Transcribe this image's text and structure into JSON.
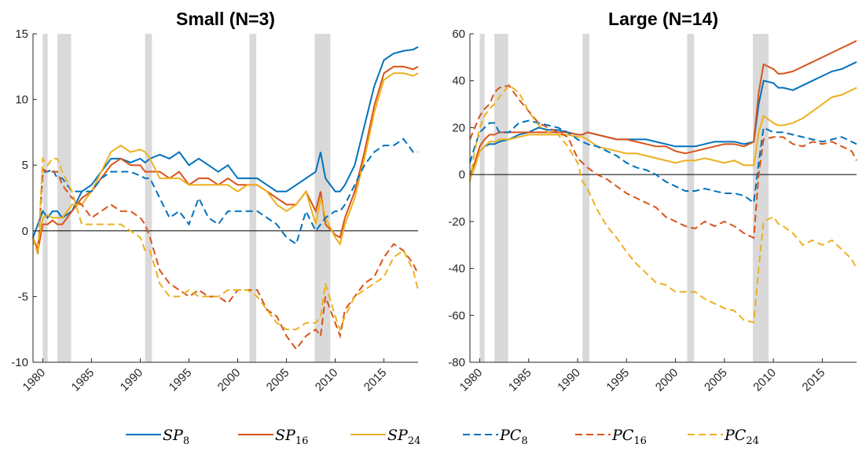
{
  "chart_data": [
    {
      "type": "line",
      "title": "Small (N=3)",
      "xlim": [
        1979,
        2018.5
      ],
      "xticks": [
        1980,
        1985,
        1990,
        1995,
        2000,
        2005,
        2010,
        2015
      ],
      "ylim": [
        -10,
        15
      ],
      "yticks": [
        -10,
        -5,
        0,
        5,
        10,
        15
      ],
      "recessions": [
        [
          1980.0,
          1980.5
        ],
        [
          1981.5,
          1982.9
        ],
        [
          1990.5,
          1991.2
        ],
        [
          2001.2,
          2001.9
        ],
        [
          2007.9,
          2009.5
        ]
      ],
      "recession_color": "#d9d9d9",
      "x": [
        1979,
        1979.5,
        1980,
        1980.5,
        1981,
        1981.5,
        1982,
        1983,
        1984,
        1985,
        1986,
        1987,
        1988,
        1989,
        1990,
        1990.5,
        1991,
        1992,
        1993,
        1994,
        1995,
        1996,
        1997,
        1998,
        1999,
        2000,
        2001,
        2002,
        2003,
        2004,
        2005,
        2006,
        2007,
        2008,
        2008.5,
        2009,
        2010,
        2010.5,
        2011,
        2012,
        2013,
        2014,
        2015,
        2016,
        2017,
        2018,
        2018.5
      ],
      "series": [
        {
          "name": "SP",
          "subscript": "8",
          "color": "#0072BD",
          "linestyle": "solid",
          "values": [
            -0.5,
            0.5,
            1.5,
            1,
            1.5,
            1.5,
            1.0,
            1.5,
            3,
            3.5,
            4.5,
            5.5,
            5.5,
            5.2,
            5.5,
            5.2,
            5.5,
            5.8,
            5.5,
            6,
            5,
            5.5,
            5,
            4.5,
            5,
            4,
            4,
            4,
            3.5,
            3,
            3,
            3.5,
            4,
            4.5,
            6,
            4,
            3,
            3,
            3.5,
            5,
            8,
            11,
            13,
            13.5,
            13.7,
            13.8,
            14
          ]
        },
        {
          "name": "SP",
          "subscript": "16",
          "color": "#D95319",
          "linestyle": "solid",
          "values": [
            -0.5,
            -1.5,
            0.5,
            0.5,
            0.8,
            0.5,
            0.5,
            1.5,
            2.5,
            3,
            4,
            5,
            5.5,
            5,
            5,
            4.5,
            4.5,
            4.5,
            4,
            4.5,
            3.5,
            4,
            4,
            3.5,
            4,
            3.5,
            3.5,
            3.5,
            3,
            2.5,
            2,
            2,
            3,
            1.5,
            3,
            0.5,
            -0.3,
            -0.5,
            1,
            3,
            6,
            9.5,
            12,
            12.5,
            12.5,
            12.3,
            12.5
          ]
        },
        {
          "name": "SP",
          "subscript": "24",
          "color": "#EDB120",
          "linestyle": "solid",
          "values": [
            -1,
            -1,
            1,
            1.2,
            1,
            1,
            1,
            2,
            2,
            3,
            4.5,
            6,
            6.5,
            6,
            6.2,
            6,
            5.5,
            4,
            4,
            4,
            3.5,
            3.5,
            3.5,
            3.5,
            3.5,
            3,
            3.5,
            3.5,
            3,
            2,
            1.5,
            2,
            3,
            0.5,
            2.5,
            1,
            -0.5,
            -1,
            0.5,
            2.5,
            5.5,
            9,
            11.5,
            12,
            12,
            11.8,
            12
          ]
        },
        {
          "name": "PC",
          "subscript": "8",
          "color": "#0072BD",
          "linestyle": "dashed",
          "values": [
            -0.5,
            -1.7,
            4.5,
            4.5,
            4.7,
            4,
            4,
            3,
            3,
            3,
            4,
            4.5,
            4.5,
            4.5,
            4.2,
            4,
            4,
            2.5,
            1,
            1.5,
            0.5,
            2.5,
            1,
            0.5,
            1.5,
            1.5,
            1.5,
            1.5,
            1,
            0.5,
            -0.5,
            -1,
            1.5,
            0,
            0.5,
            1,
            1.5,
            1.5,
            2,
            3.5,
            5,
            6,
            6.5,
            6.5,
            7,
            6,
            6
          ]
        },
        {
          "name": "PC",
          "subscript": "16",
          "color": "#D95319",
          "linestyle": "dashed",
          "values": [
            -0.5,
            -1.7,
            4.7,
            4.5,
            4.5,
            4.5,
            3.5,
            2.5,
            2,
            1,
            1.5,
            2,
            1.5,
            1.5,
            1,
            0.5,
            -0.5,
            -3,
            -4,
            -4.5,
            -5,
            -4.5,
            -5,
            -5,
            -5.5,
            -4.5,
            -4.5,
            -4.5,
            -6,
            -6.5,
            -8,
            -9,
            -8,
            -7.5,
            -8,
            -5,
            -7,
            -8,
            -6,
            -5,
            -4,
            -3.5,
            -2,
            -1,
            -1.5,
            -2.5,
            -3.3
          ]
        },
        {
          "name": "PC",
          "subscript": "24",
          "color": "#EDB120",
          "linestyle": "dashed",
          "values": [
            -0.5,
            -1.8,
            5.5,
            5,
            5.5,
            5.5,
            4.5,
            3,
            0.5,
            0.5,
            0.5,
            0.5,
            0.5,
            0,
            -0.5,
            -1.5,
            -1.5,
            -4,
            -5,
            -5,
            -4.5,
            -5,
            -5,
            -5,
            -4.5,
            -4.5,
            -4.5,
            -5,
            -6,
            -7,
            -7.5,
            -7.5,
            -7,
            -7,
            -6.5,
            -4,
            -6.5,
            -7.5,
            -6.5,
            -5,
            -4.5,
            -4,
            -3.5,
            -2,
            -1.5,
            -3,
            -4.5
          ]
        }
      ]
    },
    {
      "type": "line",
      "title": "Large (N=14)",
      "xlim": [
        1979,
        2018.5
      ],
      "xticks": [
        1980,
        1985,
        1990,
        1995,
        2000,
        2005,
        2010,
        2015
      ],
      "ylim": [
        -80,
        60
      ],
      "yticks": [
        -80,
        -60,
        -40,
        -20,
        0,
        20,
        40,
        60
      ],
      "recessions": [
        [
          1980.0,
          1980.5
        ],
        [
          1981.5,
          1982.9
        ],
        [
          1990.5,
          1991.2
        ],
        [
          2001.2,
          2001.9
        ],
        [
          2007.9,
          2009.5
        ]
      ],
      "recession_color": "#d9d9d9",
      "x": [
        1979,
        1979.5,
        1980,
        1980.5,
        1981,
        1981.5,
        1982,
        1983,
        1984,
        1985,
        1986,
        1987,
        1988,
        1989,
        1990,
        1990.5,
        1991,
        1992,
        1993,
        1994,
        1995,
        1996,
        1997,
        1998,
        1999,
        2000,
        2001,
        2002,
        2003,
        2004,
        2005,
        2006,
        2007,
        2008,
        2008.5,
        2009,
        2010,
        2010.5,
        2011,
        2012,
        2013,
        2014,
        2015,
        2016,
        2017,
        2018,
        2018.5
      ],
      "series": [
        {
          "color": "#0072BD",
          "linestyle": "solid",
          "values": [
            0,
            5,
            10,
            12,
            13,
            13,
            14,
            15,
            17,
            18,
            20,
            19,
            19,
            18,
            17,
            17,
            18,
            17,
            16,
            15,
            15,
            15,
            15,
            14,
            13,
            12,
            12,
            12,
            13,
            14,
            14,
            14,
            13,
            14,
            30,
            40,
            39,
            37,
            37,
            36,
            38,
            40,
            42,
            44,
            45,
            47,
            48
          ]
        },
        {
          "color": "#D95319",
          "linestyle": "solid",
          "values": [
            0,
            5,
            12,
            15,
            17,
            17,
            18,
            18,
            18,
            18,
            18,
            18,
            18,
            18,
            17,
            17,
            18,
            17,
            16,
            15,
            15,
            14,
            13,
            12,
            12,
            10,
            9,
            10,
            11,
            12,
            13,
            13,
            12,
            14,
            35,
            47,
            45,
            43,
            43,
            44,
            46,
            48,
            50,
            52,
            54,
            56,
            57
          ]
        },
        {
          "color": "#EDB120",
          "linestyle": "solid",
          "values": [
            -2,
            3,
            10,
            12,
            14,
            14,
            15,
            15,
            16,
            17,
            17,
            17,
            17,
            17,
            16,
            16,
            15,
            12,
            11,
            10,
            9,
            9,
            8,
            7,
            6,
            5,
            6,
            6,
            7,
            6,
            5,
            6,
            4,
            4,
            18,
            25,
            22,
            21,
            21,
            22,
            24,
            27,
            30,
            33,
            34,
            36,
            37
          ]
        },
        {
          "color": "#0072BD",
          "linestyle": "dashed",
          "values": [
            5,
            12,
            18,
            20,
            22,
            22,
            18,
            18,
            22,
            23,
            22,
            21,
            20,
            18,
            15,
            14,
            13,
            12,
            10,
            8,
            5,
            3,
            2,
            0,
            -3,
            -5,
            -7,
            -7,
            -6,
            -7,
            -8,
            -8,
            -9,
            -12,
            5,
            20,
            18,
            18,
            18,
            17,
            16,
            15,
            14,
            15,
            16,
            14,
            13
          ]
        },
        {
          "color": "#D95319",
          "linestyle": "dashed",
          "values": [
            15,
            20,
            25,
            28,
            30,
            35,
            37,
            38,
            32,
            27,
            22,
            20,
            18,
            16,
            7,
            5,
            3,
            0,
            -2,
            -5,
            -8,
            -10,
            -12,
            -14,
            -18,
            -20,
            -22,
            -23,
            -20,
            -22,
            -20,
            -22,
            -25,
            -27,
            0,
            15,
            16,
            16,
            16,
            13,
            12,
            14,
            13,
            14,
            12,
            10,
            6
          ]
        },
        {
          "color": "#EDB120",
          "linestyle": "dashed",
          "values": [
            -3,
            10,
            20,
            25,
            28,
            30,
            33,
            38,
            35,
            27,
            21,
            18,
            17,
            12,
            5,
            -3,
            -6,
            -15,
            -22,
            -27,
            -33,
            -38,
            -42,
            -46,
            -47,
            -50,
            -50,
            -50,
            -53,
            -55,
            -57,
            -58,
            -62,
            -63,
            -40,
            -20,
            -18,
            -21,
            -22,
            -25,
            -30,
            -28,
            -30,
            -28,
            -32,
            -36,
            -40
          ]
        }
      ]
    }
  ]
}
